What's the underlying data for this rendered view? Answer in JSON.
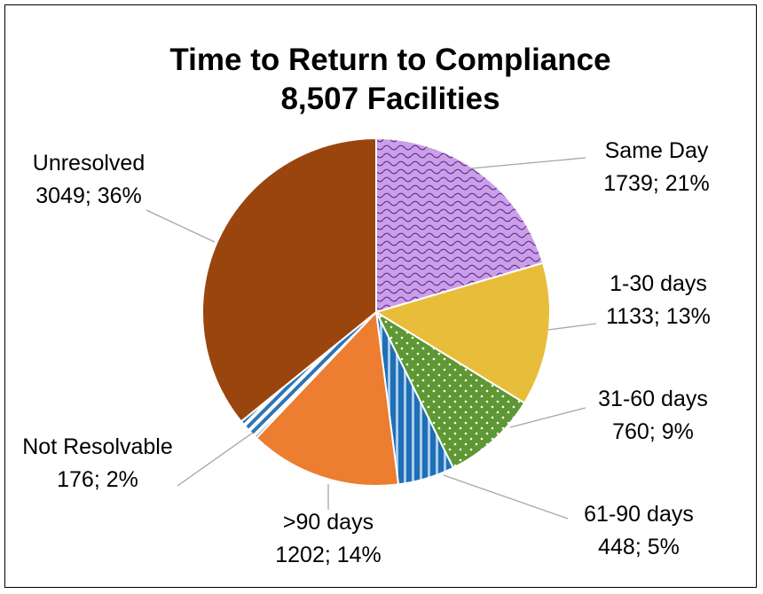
{
  "chart_data": {
    "type": "pie",
    "title": "Time to Return to Compliance",
    "subtitle": "8,507 Facilities",
    "categories": [
      "Same Day",
      "1-30 days",
      "31-60 days",
      "61-90 days",
      ">90 days",
      "Not Resolvable",
      "Unresolved"
    ],
    "values": [
      1739,
      1133,
      760,
      448,
      1202,
      176,
      3049
    ],
    "value_labels": [
      "1739; 21%",
      "1133; 13%",
      "760; 9%",
      "448; 5%",
      "1202; 14%",
      "176; 2%",
      "3049; 36%"
    ],
    "colors": [
      "#c9a0e6",
      "#e8bd3a",
      "#5e9733",
      "#1f6fb5",
      "#ed7d31",
      "#2e75b6",
      "#9a450e"
    ],
    "patterns": [
      "wave",
      "none",
      "dots",
      "vertical-stripes",
      "none",
      "diagonal-stripes",
      "none"
    ]
  }
}
